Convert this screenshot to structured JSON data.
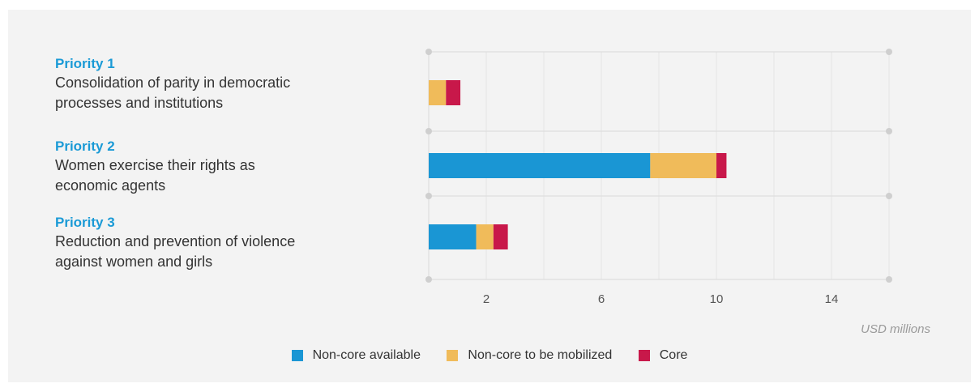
{
  "priorities": [
    {
      "title": "Priority 1",
      "line1": "Consolidation of parity in democratic",
      "line2": "processes and institutions"
    },
    {
      "title": "Priority 2",
      "line1": "Women exercise their rights as",
      "line2": "economic agents"
    },
    {
      "title": "Priority 3",
      "line1": "Reduction and prevention of violence",
      "line2": "against women and girls"
    }
  ],
  "colors": {
    "non_core_available": "#1a96d4",
    "non_core_to_be_mobilized": "#f0bb5a",
    "core": "#c8184a",
    "grid": "#d9d9d9",
    "dot": "#cfcfcf"
  },
  "chart_data": {
    "type": "bar",
    "orientation": "horizontal",
    "stacked": true,
    "categories": [
      "Priority 1",
      "Priority 2",
      "Priority 3"
    ],
    "series": [
      {
        "name": "Non-core available",
        "values": [
          0,
          7.7,
          1.65
        ]
      },
      {
        "name": "Non-core to be mobilized",
        "values": [
          0.6,
          2.3,
          0.6
        ]
      },
      {
        "name": "Core",
        "values": [
          0.5,
          0.35,
          0.5
        ]
      }
    ],
    "xlim": [
      0,
      16
    ],
    "xticks": [
      2,
      6,
      10,
      14
    ],
    "xlabel": "USD millions",
    "legend_position": "bottom",
    "grid": true
  }
}
